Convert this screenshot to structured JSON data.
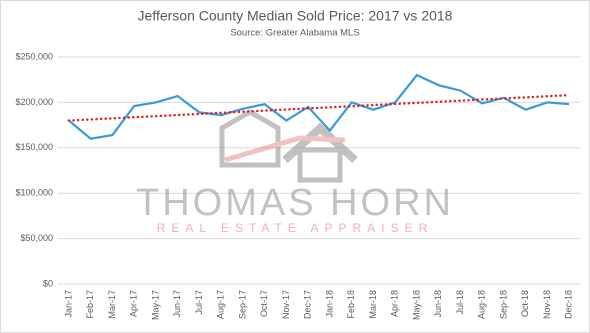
{
  "chart_data": {
    "type": "line",
    "title": "Jefferson County Median Sold Price: 2017 vs 2018",
    "subtitle": "Source: Greater Alabama MLS",
    "watermark": {
      "name": "THOMAS HORN",
      "tagline": "REAL ESTATE APPRAISER"
    },
    "categories": [
      "Jan-17",
      "Feb-17",
      "Mar-17",
      "Apr-17",
      "May-17",
      "Jun-17",
      "Jul-17",
      "Aug-17",
      "Sep-17",
      "Oct-17",
      "Nov-17",
      "Dec-17",
      "Jan-18",
      "Feb-18",
      "Mar-18",
      "Apr-18",
      "May-18",
      "Jun-18",
      "Jul-18",
      "Aug-18",
      "Sep-18",
      "Oct-18",
      "Nov-18",
      "Dec-18"
    ],
    "series": [
      {
        "color": "#3a9ad9",
        "values": [
          180000,
          160000,
          164000,
          196000,
          200000,
          207000,
          189000,
          186000,
          193000,
          198000,
          180000,
          195000,
          169000,
          200000,
          192000,
          200000,
          230000,
          219000,
          213000,
          199000,
          205000,
          192000,
          200000,
          198000
        ]
      }
    ],
    "trendline": {
      "color": "#e01f1f",
      "start": 180000,
      "end": 208000
    },
    "ylim": [
      0,
      250000
    ],
    "yticks": [
      {
        "value": 0,
        "label": "$0"
      },
      {
        "value": 50000,
        "label": "$50,000"
      },
      {
        "value": 100000,
        "label": "$100,000"
      },
      {
        "value": 150000,
        "label": "$150,000"
      },
      {
        "value": 200000,
        "label": "$200,000"
      },
      {
        "value": 250000,
        "label": "$250,000"
      }
    ],
    "grid": true
  }
}
